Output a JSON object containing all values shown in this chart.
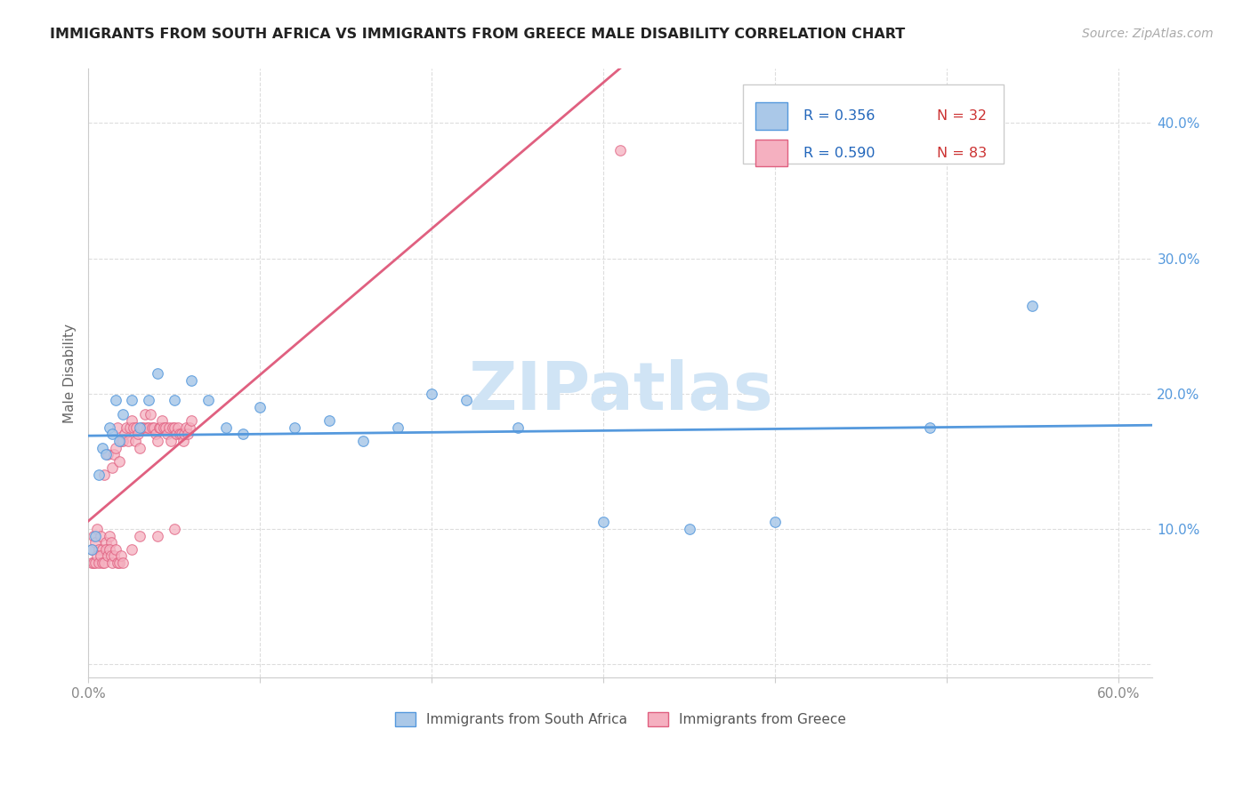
{
  "title": "IMMIGRANTS FROM SOUTH AFRICA VS IMMIGRANTS FROM GREECE MALE DISABILITY CORRELATION CHART",
  "source": "Source: ZipAtlas.com",
  "ylabel": "Male Disability",
  "xlim": [
    0.0,
    0.62
  ],
  "ylim": [
    -0.01,
    0.44
  ],
  "xticks": [
    0.0,
    0.1,
    0.2,
    0.3,
    0.4,
    0.5,
    0.6
  ],
  "yticks": [
    0.0,
    0.1,
    0.2,
    0.3,
    0.4
  ],
  "xtick_labels_show": [
    "0.0%",
    "60.0%"
  ],
  "xtick_labels_show_pos": [
    0.0,
    0.6
  ],
  "ytick_labels_right": [
    "",
    "10.0%",
    "20.0%",
    "30.0%",
    "40.0%"
  ],
  "r_south_africa": 0.356,
  "n_south_africa": 32,
  "r_greece": 0.59,
  "n_greece": 83,
  "color_south_africa": "#aac8e8",
  "color_greece": "#f5b0c0",
  "line_color_south_africa": "#5599dd",
  "line_color_greece": "#e06080",
  "watermark": "ZIPatlas",
  "watermark_color": "#d0e4f5",
  "background_color": "#ffffff",
  "grid_color": "#dddddd",
  "legend_r_color": "#2266bb",
  "legend_n_color": "#cc3333",
  "south_africa_x": [
    0.002,
    0.004,
    0.006,
    0.008,
    0.01,
    0.012,
    0.014,
    0.016,
    0.018,
    0.02,
    0.025,
    0.03,
    0.035,
    0.04,
    0.05,
    0.06,
    0.07,
    0.08,
    0.09,
    0.1,
    0.12,
    0.14,
    0.16,
    0.18,
    0.2,
    0.22,
    0.25,
    0.3,
    0.35,
    0.4,
    0.49,
    0.55
  ],
  "south_africa_y": [
    0.085,
    0.095,
    0.14,
    0.16,
    0.155,
    0.175,
    0.17,
    0.195,
    0.165,
    0.185,
    0.195,
    0.175,
    0.195,
    0.215,
    0.195,
    0.21,
    0.195,
    0.175,
    0.17,
    0.19,
    0.175,
    0.18,
    0.165,
    0.175,
    0.2,
    0.195,
    0.175,
    0.105,
    0.1,
    0.105,
    0.175,
    0.265
  ],
  "greece_x": [
    0.002,
    0.003,
    0.004,
    0.005,
    0.006,
    0.007,
    0.008,
    0.009,
    0.01,
    0.011,
    0.012,
    0.013,
    0.014,
    0.015,
    0.016,
    0.017,
    0.018,
    0.019,
    0.02,
    0.021,
    0.022,
    0.023,
    0.024,
    0.025,
    0.026,
    0.027,
    0.028,
    0.029,
    0.03,
    0.031,
    0.032,
    0.033,
    0.034,
    0.035,
    0.036,
    0.037,
    0.038,
    0.039,
    0.04,
    0.041,
    0.042,
    0.043,
    0.044,
    0.045,
    0.046,
    0.047,
    0.048,
    0.049,
    0.05,
    0.051,
    0.052,
    0.053,
    0.054,
    0.055,
    0.056,
    0.057,
    0.058,
    0.059,
    0.06,
    0.002,
    0.003,
    0.004,
    0.005,
    0.006,
    0.007,
    0.008,
    0.009,
    0.01,
    0.011,
    0.012,
    0.013,
    0.014,
    0.015,
    0.016,
    0.017,
    0.018,
    0.019,
    0.02,
    0.025,
    0.03,
    0.04,
    0.05,
    0.31
  ],
  "greece_y": [
    0.085,
    0.095,
    0.09,
    0.1,
    0.085,
    0.095,
    0.085,
    0.14,
    0.09,
    0.155,
    0.095,
    0.09,
    0.145,
    0.155,
    0.16,
    0.175,
    0.15,
    0.165,
    0.165,
    0.17,
    0.175,
    0.165,
    0.175,
    0.18,
    0.175,
    0.165,
    0.175,
    0.17,
    0.16,
    0.175,
    0.175,
    0.185,
    0.175,
    0.175,
    0.185,
    0.175,
    0.175,
    0.17,
    0.165,
    0.175,
    0.175,
    0.18,
    0.175,
    0.175,
    0.17,
    0.175,
    0.165,
    0.175,
    0.175,
    0.17,
    0.175,
    0.17,
    0.17,
    0.165,
    0.17,
    0.175,
    0.17,
    0.175,
    0.18,
    0.075,
    0.075,
    0.075,
    0.08,
    0.075,
    0.08,
    0.075,
    0.075,
    0.085,
    0.08,
    0.085,
    0.08,
    0.075,
    0.08,
    0.085,
    0.075,
    0.075,
    0.08,
    0.075,
    0.085,
    0.095,
    0.095,
    0.1,
    0.38
  ]
}
